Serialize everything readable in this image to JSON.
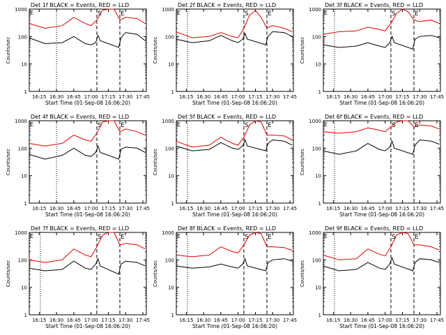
{
  "common": {
    "xlabel": "Start Time (01-Sep-08 16:06:20)",
    "ylabel": "Counts/sec",
    "xtick_labels": [
      "16:15",
      "16:30",
      "16:45",
      "17:00",
      "17:15",
      "17:30",
      "17:45"
    ],
    "ytick_labels": [
      "1",
      "10",
      "100",
      "1000"
    ],
    "marker_S": "S",
    "marker_E": "E",
    "corner_marker": "E",
    "colors": {
      "events": "#000000",
      "lld": "#e00000",
      "axes": "#000000"
    }
  },
  "chart_data": [
    {
      "type": "line",
      "title": "Det 1f BLACK = Events, RED = LLD",
      "x_range": [
        "16:06:20",
        "17:48"
      ],
      "y_scale": "log",
      "ylim": [
        1,
        1000
      ],
      "dotted_line_at": "16:30",
      "dashed_lines_at": [
        "17:05",
        "17:25"
      ],
      "series": [
        {
          "name": "BLACK = Events",
          "color": "#000000",
          "x": [
            "16:06",
            "16:20",
            "16:35",
            "16:45",
            "16:55",
            "17:00",
            "17:04",
            "17:06",
            "17:08",
            "17:24",
            "17:26",
            "17:30",
            "17:40",
            "17:47"
          ],
          "y": [
            90,
            55,
            60,
            100,
            55,
            50,
            60,
            110,
            70,
            40,
            90,
            140,
            120,
            70
          ]
        },
        {
          "name": "RED = LLD",
          "color": "#e00000",
          "x": [
            "16:06",
            "16:20",
            "16:35",
            "16:45",
            "16:55",
            "17:00",
            "17:05",
            "17:10",
            "17:15",
            "17:20",
            "17:25",
            "17:30",
            "17:40",
            "17:47"
          ],
          "y": [
            300,
            200,
            250,
            500,
            300,
            250,
            400,
            900,
            1000,
            1000,
            400,
            500,
            450,
            300
          ]
        }
      ]
    },
    {
      "type": "line",
      "title": "Det 2f BLACK = Events, RED = LLD",
      "x_range": [
        "16:06:20",
        "17:48"
      ],
      "y_scale": "log",
      "ylim": [
        1,
        1000
      ],
      "dotted_line_at": "16:16",
      "dashed_lines_at": [
        "17:05",
        "17:25"
      ],
      "series": [
        {
          "name": "BLACK = Events",
          "color": "#000000",
          "x": [
            "16:06",
            "16:20",
            "16:35",
            "16:45",
            "16:55",
            "17:00",
            "17:04",
            "17:06",
            "17:08",
            "17:24",
            "17:26",
            "17:30",
            "17:40",
            "17:47"
          ],
          "y": [
            80,
            60,
            70,
            110,
            70,
            60,
            80,
            130,
            80,
            50,
            100,
            150,
            140,
            100
          ]
        },
        {
          "name": "RED = LLD",
          "color": "#e00000",
          "x": [
            "16:06",
            "16:20",
            "16:35",
            "16:45",
            "16:55",
            "17:00",
            "17:05",
            "17:10",
            "17:15",
            "17:20",
            "17:25",
            "17:30",
            "17:40",
            "17:47"
          ],
          "y": [
            150,
            90,
            100,
            140,
            100,
            90,
            200,
            600,
            900,
            500,
            200,
            250,
            200,
            150
          ]
        }
      ]
    },
    {
      "type": "line",
      "title": "Det 3f BLACK = Events, RED = LLD",
      "x_range": [
        "16:06:20",
        "17:48"
      ],
      "y_scale": "log",
      "ylim": [
        1,
        1000
      ],
      "dotted_line_at": "16:16",
      "dashed_lines_at": [
        "17:05",
        "17:25"
      ],
      "series": [
        {
          "name": "BLACK = Events",
          "color": "#000000",
          "x": [
            "16:06",
            "16:20",
            "16:35",
            "16:45",
            "16:55",
            "17:00",
            "17:04",
            "17:06",
            "17:08",
            "17:24",
            "17:26",
            "17:30",
            "17:40",
            "17:47"
          ],
          "y": [
            50,
            40,
            45,
            60,
            45,
            40,
            60,
            100,
            60,
            35,
            80,
            100,
            110,
            90
          ]
        },
        {
          "name": "RED = LLD",
          "color": "#e00000",
          "x": [
            "16:06",
            "16:20",
            "16:35",
            "16:45",
            "16:55",
            "17:00",
            "17:05",
            "17:10",
            "17:15",
            "17:20",
            "17:25",
            "17:30",
            "17:40",
            "17:47"
          ],
          "y": [
            120,
            150,
            160,
            220,
            180,
            160,
            300,
            700,
            1000,
            800,
            400,
            350,
            400,
            300
          ]
        }
      ]
    },
    {
      "type": "line",
      "title": "Det 4f BLACK = Events, RED = LLD",
      "x_range": [
        "16:06:20",
        "17:48"
      ],
      "y_scale": "log",
      "ylim": [
        1,
        1000
      ],
      "dotted_line_at": "16:30",
      "dashed_lines_at": [
        "17:05",
        "17:25"
      ],
      "series": [
        {
          "name": "BLACK = Events",
          "color": "#000000",
          "x": [
            "16:06",
            "16:20",
            "16:35",
            "16:45",
            "16:55",
            "17:00",
            "17:04",
            "17:06",
            "17:08",
            "17:24",
            "17:26",
            "17:30",
            "17:40",
            "17:47"
          ],
          "y": [
            60,
            40,
            55,
            100,
            55,
            50,
            70,
            120,
            70,
            40,
            90,
            110,
            100,
            70
          ]
        },
        {
          "name": "RED = LLD",
          "color": "#e00000",
          "x": [
            "16:06",
            "16:20",
            "16:35",
            "16:45",
            "16:55",
            "17:00",
            "17:05",
            "17:10",
            "17:15",
            "17:20",
            "17:25",
            "17:30",
            "17:40",
            "17:47"
          ],
          "y": [
            150,
            120,
            150,
            300,
            200,
            180,
            350,
            900,
            1000,
            1000,
            400,
            500,
            400,
            300
          ]
        }
      ]
    },
    {
      "type": "line",
      "title": "Det 5f BLACK = Events, RED = LLD",
      "x_range": [
        "16:06:20",
        "17:48"
      ],
      "y_scale": "log",
      "ylim": [
        1,
        1000
      ],
      "dotted_line_at": "16:16",
      "dashed_lines_at": [
        "17:05",
        "17:25"
      ],
      "series": [
        {
          "name": "BLACK = Events",
          "color": "#000000",
          "x": [
            "16:06",
            "16:20",
            "16:35",
            "16:45",
            "16:55",
            "17:00",
            "17:04",
            "17:06",
            "17:08",
            "17:24",
            "17:26",
            "17:30",
            "17:40",
            "17:47"
          ],
          "y": [
            120,
            80,
            90,
            160,
            100,
            90,
            120,
            200,
            120,
            80,
            150,
            200,
            180,
            130
          ]
        },
        {
          "name": "RED = LLD",
          "color": "#e00000",
          "x": [
            "16:06",
            "16:20",
            "16:35",
            "16:45",
            "16:55",
            "17:00",
            "17:05",
            "17:10",
            "17:15",
            "17:20",
            "17:25",
            "17:30",
            "17:40",
            "17:47"
          ],
          "y": [
            180,
            110,
            130,
            250,
            150,
            130,
            250,
            700,
            1000,
            900,
            300,
            300,
            280,
            200
          ]
        }
      ]
    },
    {
      "type": "line",
      "title": "Det 6f BLACK = Events, RED = LLD",
      "x_range": [
        "16:06:20",
        "17:48"
      ],
      "y_scale": "log",
      "ylim": [
        1,
        1000
      ],
      "dotted_line_at": "16:16",
      "dashed_lines_at": [
        "17:05",
        "17:25"
      ],
      "series": [
        {
          "name": "BLACK = Events",
          "color": "#000000",
          "x": [
            "16:06",
            "16:20",
            "16:35",
            "16:45",
            "16:55",
            "17:00",
            "17:04",
            "17:06",
            "17:08",
            "17:24",
            "17:26",
            "17:30",
            "17:40",
            "17:47"
          ],
          "y": [
            80,
            60,
            80,
            150,
            90,
            80,
            110,
            180,
            100,
            60,
            130,
            200,
            180,
            140
          ]
        },
        {
          "name": "RED = LLD",
          "color": "#e00000",
          "x": [
            "16:06",
            "16:20",
            "16:35",
            "16:45",
            "16:55",
            "17:00",
            "17:05",
            "17:10",
            "17:15",
            "17:20",
            "17:25",
            "17:30",
            "17:40",
            "17:47"
          ],
          "y": [
            400,
            350,
            400,
            550,
            450,
            400,
            600,
            900,
            1000,
            1000,
            600,
            700,
            650,
            500
          ]
        }
      ]
    },
    {
      "type": "line",
      "title": "Det 7f BLACK = Events, RED = LLD",
      "x_range": [
        "16:06:20",
        "17:48"
      ],
      "y_scale": "log",
      "ylim": [
        1,
        1000
      ],
      "dotted_line_at": "16:16",
      "dashed_lines_at": [
        "17:05",
        "17:25"
      ],
      "series": [
        {
          "name": "BLACK = Events",
          "color": "#000000",
          "x": [
            "16:06",
            "16:20",
            "16:35",
            "16:45",
            "16:55",
            "17:00",
            "17:04",
            "17:06",
            "17:08",
            "17:24",
            "17:26",
            "17:30",
            "17:40",
            "17:47"
          ],
          "y": [
            50,
            40,
            45,
            90,
            50,
            45,
            70,
            110,
            60,
            30,
            70,
            90,
            80,
            60
          ]
        },
        {
          "name": "RED = LLD",
          "color": "#e00000",
          "x": [
            "16:06",
            "16:20",
            "16:35",
            "16:45",
            "16:55",
            "17:00",
            "17:05",
            "17:10",
            "17:15",
            "17:20",
            "17:25",
            "17:30",
            "17:40",
            "17:47"
          ],
          "y": [
            100,
            80,
            100,
            250,
            150,
            130,
            300,
            800,
            1000,
            1000,
            350,
            400,
            350,
            250
          ]
        }
      ]
    },
    {
      "type": "line",
      "title": "Det 8f BLACK = Events, RED = LLD",
      "x_range": [
        "16:06:20",
        "17:48"
      ],
      "y_scale": "log",
      "ylim": [
        1,
        1000
      ],
      "dotted_line_at": "16:16",
      "dashed_lines_at": [
        "17:05",
        "17:25"
      ],
      "series": [
        {
          "name": "BLACK = Events",
          "color": "#000000",
          "x": [
            "16:06",
            "16:20",
            "16:35",
            "16:45",
            "16:55",
            "17:00",
            "17:04",
            "17:06",
            "17:08",
            "17:24",
            "17:26",
            "17:30",
            "17:40",
            "17:47"
          ],
          "y": [
            60,
            50,
            55,
            70,
            55,
            50,
            70,
            110,
            60,
            40,
            80,
            100,
            110,
            90
          ]
        },
        {
          "name": "RED = LLD",
          "color": "#e00000",
          "x": [
            "16:06",
            "16:20",
            "16:35",
            "16:45",
            "16:55",
            "17:00",
            "17:05",
            "17:10",
            "17:15",
            "17:20",
            "17:25",
            "17:30",
            "17:40",
            "17:47"
          ],
          "y": [
            150,
            130,
            150,
            300,
            200,
            180,
            350,
            800,
            1000,
            900,
            300,
            300,
            280,
            220
          ]
        }
      ]
    },
    {
      "type": "line",
      "title": "Det 9f BLACK = Events, RED = LLD",
      "x_range": [
        "16:06:20",
        "17:48"
      ],
      "y_scale": "log",
      "ylim": [
        1,
        1000
      ],
      "dotted_line_at": "16:16",
      "dashed_lines_at": [
        "17:05",
        "17:25"
      ],
      "series": [
        {
          "name": "BLACK = Events",
          "color": "#000000",
          "x": [
            "16:06",
            "16:20",
            "16:35",
            "16:45",
            "16:55",
            "17:00",
            "17:04",
            "17:06",
            "17:08",
            "17:24",
            "17:26",
            "17:30",
            "17:40",
            "17:47"
          ],
          "y": [
            60,
            40,
            45,
            80,
            50,
            45,
            70,
            120,
            70,
            40,
            80,
            110,
            100,
            80
          ]
        },
        {
          "name": "RED = LLD",
          "color": "#e00000",
          "x": [
            "16:06",
            "16:20",
            "16:35",
            "16:45",
            "16:55",
            "17:00",
            "17:05",
            "17:10",
            "17:15",
            "17:20",
            "17:25",
            "17:30",
            "17:40",
            "17:47"
          ],
          "y": [
            150,
            100,
            110,
            250,
            160,
            140,
            300,
            800,
            1000,
            900,
            350,
            350,
            300,
            230
          ]
        }
      ]
    }
  ]
}
